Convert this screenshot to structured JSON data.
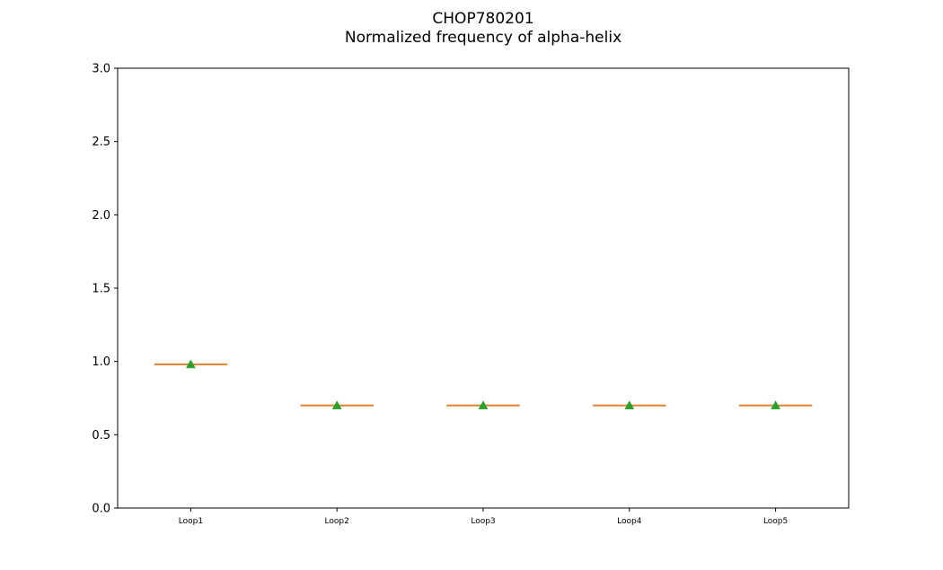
{
  "chart_data": {
    "type": "box",
    "title": "CHOP780201",
    "subtitle": "Normalized frequency of alpha-helix",
    "xlabel": "",
    "ylabel": "",
    "ylim": [
      0,
      3.0
    ],
    "yticks": [
      "0.0",
      "0.5",
      "1.0",
      "1.5",
      "2.0",
      "2.5",
      "3.0"
    ],
    "categories": [
      "Loop1",
      "Loop2",
      "Loop3",
      "Loop4",
      "Loop5"
    ],
    "values": [
      0.98,
      0.7,
      0.7,
      0.7,
      0.7
    ],
    "means": [
      0.98,
      0.7,
      0.7,
      0.7,
      0.7
    ],
    "grid": false,
    "colors": {
      "median": "#dd8a3c",
      "mean": "#2ca02c",
      "box": "#000000"
    }
  }
}
